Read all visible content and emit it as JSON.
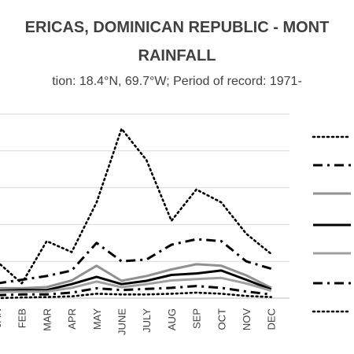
{
  "header": {
    "title_line1": "ERICAS, DOMINICAN REPUBLIC - MONT",
    "title_line2": "RAINFALL",
    "subtitle": "tion: 18.4°N, 69.7°W; Period of record: 1971-"
  },
  "chart_data": {
    "type": "line",
    "categories": [
      "JAN",
      "FEB",
      "MAR",
      "APR",
      "MAY",
      "JUNE",
      "JULY",
      "AUG",
      "SEP",
      "OCT",
      "NOV",
      "DEC"
    ],
    "ylim": [
      0,
      5
    ],
    "grid": true,
    "legend_position": "right",
    "series": [
      {
        "style": "dotted",
        "color": "#000000",
        "values": [
          1.0,
          0.4,
          1.55,
          1.25,
          2.6,
          4.6,
          3.75,
          2.1,
          2.95,
          2.6,
          1.75,
          1.2
        ]
      },
      {
        "style": "dashdot",
        "color": "#000000",
        "values": [
          0.4,
          0.5,
          0.6,
          0.75,
          1.5,
          1.0,
          1.05,
          1.45,
          1.6,
          1.55,
          1.0,
          0.8
        ]
      },
      {
        "style": "solid",
        "color": "#909090",
        "values": [
          0.27,
          0.27,
          0.3,
          0.48,
          0.88,
          0.47,
          0.6,
          0.78,
          0.92,
          0.88,
          0.62,
          0.28
        ]
      },
      {
        "style": "solid",
        "color": "#000000",
        "values": [
          0.2,
          0.22,
          0.22,
          0.38,
          0.58,
          0.38,
          0.47,
          0.63,
          0.67,
          0.75,
          0.5,
          0.24
        ]
      },
      {
        "style": "solid",
        "color": "#a0a0a0",
        "values": [
          0.17,
          0.18,
          0.18,
          0.28,
          0.45,
          0.3,
          0.38,
          0.48,
          0.52,
          0.55,
          0.4,
          0.2
        ]
      },
      {
        "style": "dashdot",
        "color": "#000000",
        "values": [
          0.08,
          0.1,
          0.1,
          0.15,
          0.27,
          0.22,
          0.25,
          0.28,
          0.33,
          0.28,
          0.18,
          0.1
        ]
      },
      {
        "style": "dotted",
        "color": "#000000",
        "values": [
          0.0,
          0.02,
          0.03,
          0.05,
          0.12,
          0.1,
          0.1,
          0.12,
          0.15,
          0.12,
          0.06,
          0.03
        ]
      }
    ]
  }
}
